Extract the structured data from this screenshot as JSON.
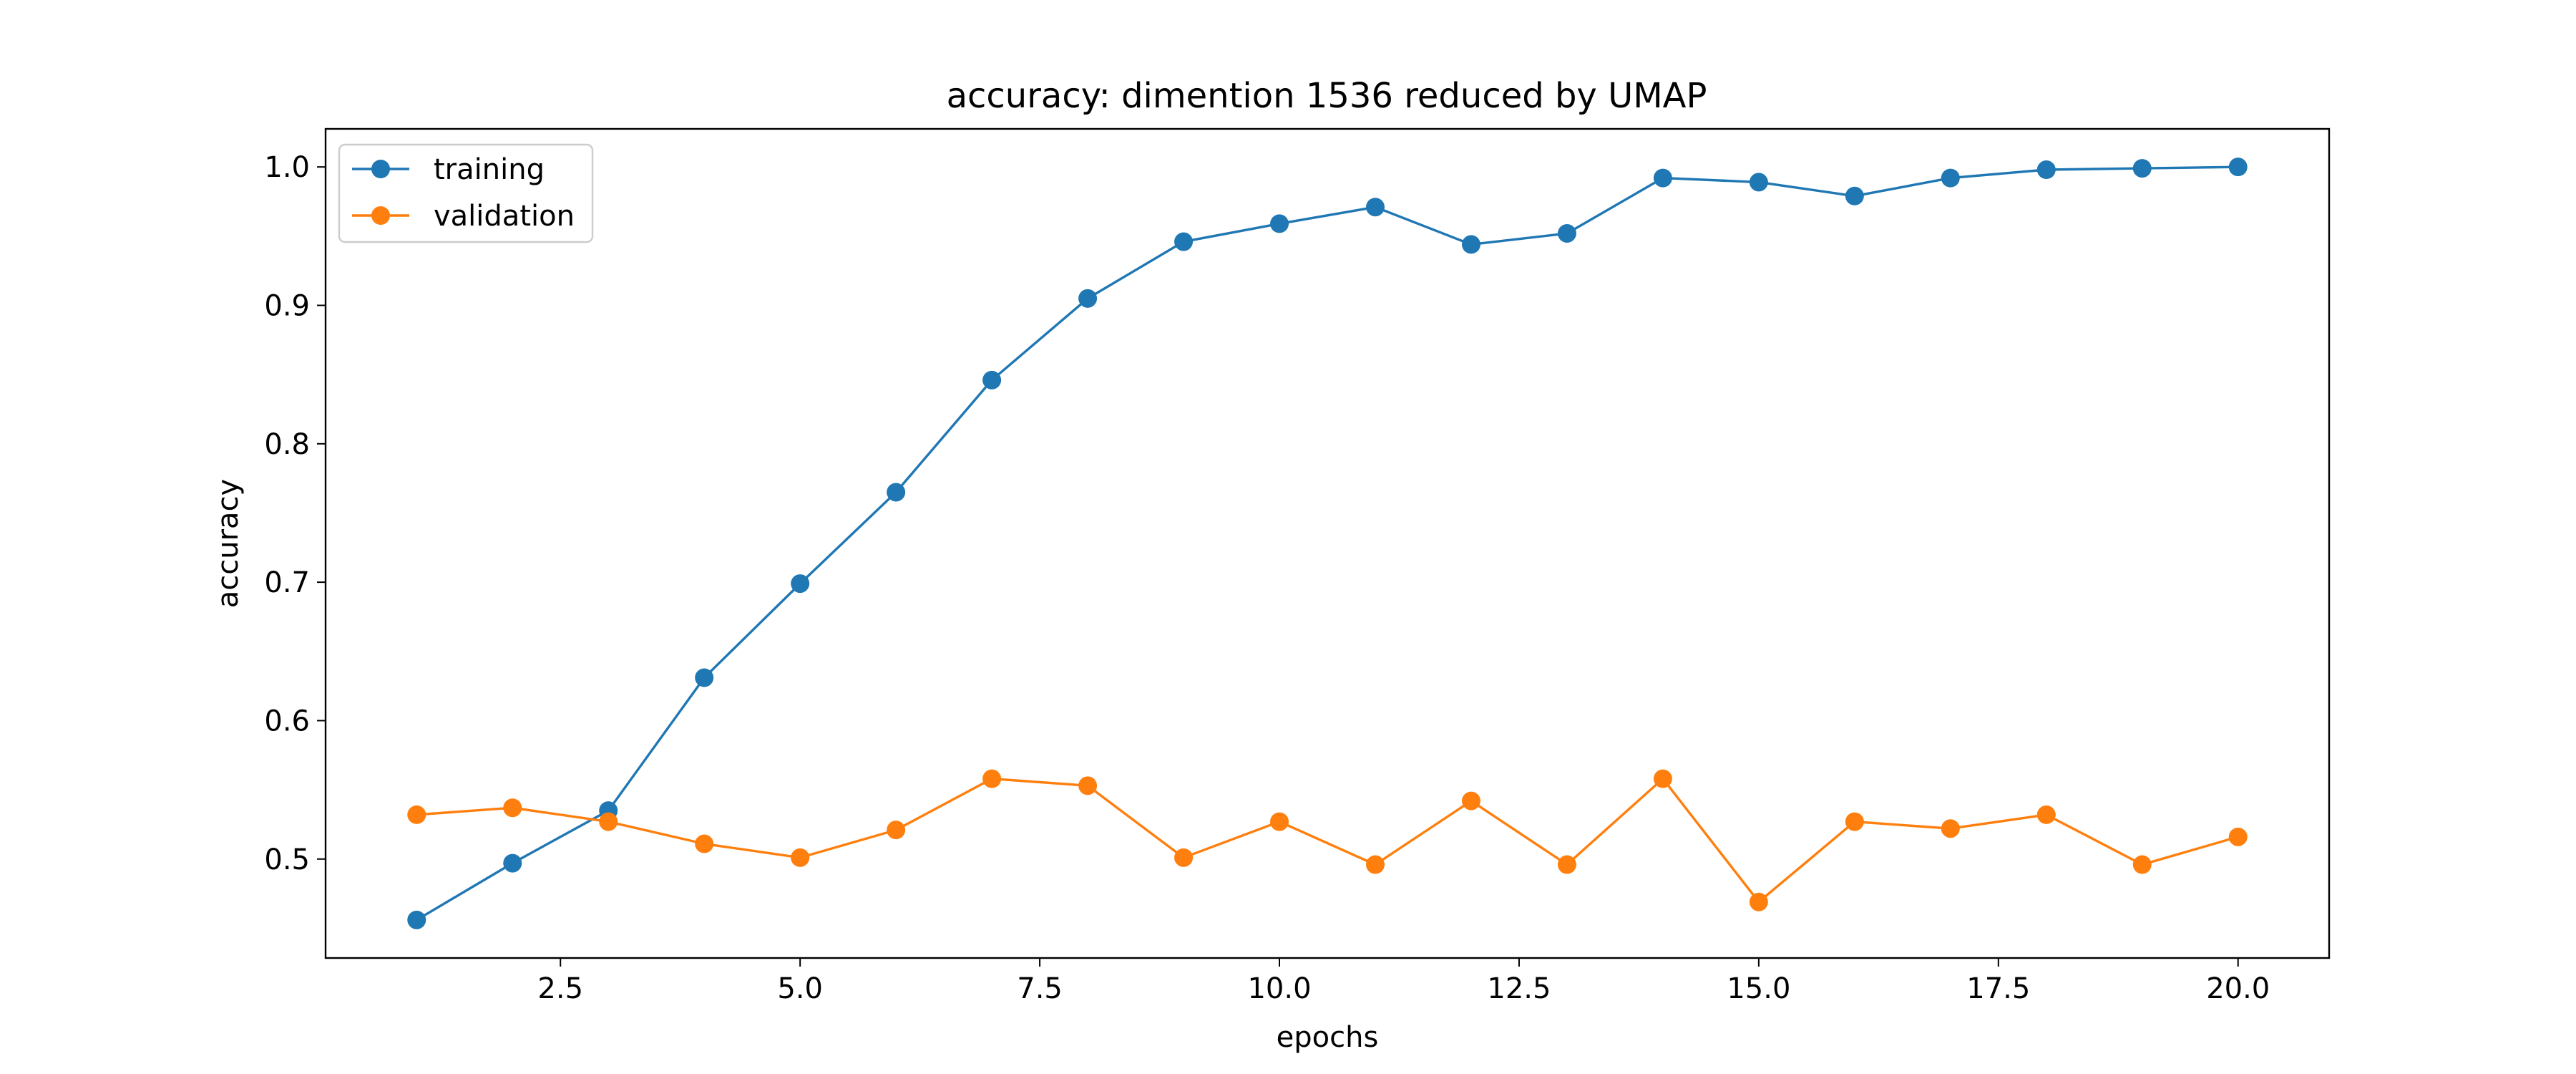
{
  "chart_data": {
    "type": "line",
    "title": "accuracy: dimention 1536 reduced by UMAP",
    "xlabel": "epochs",
    "ylabel": "accuracy",
    "xlim": [
      0.05,
      20.95
    ],
    "ylim": [
      0.4285,
      1.0275
    ],
    "xticks": [
      2.5,
      5.0,
      7.5,
      10.0,
      12.5,
      15.0,
      17.5,
      20.0
    ],
    "xtick_labels": [
      "2.5",
      "5.0",
      "7.5",
      "10.0",
      "12.5",
      "15.0",
      "17.5",
      "20.0"
    ],
    "yticks": [
      0.5,
      0.6,
      0.7,
      0.8,
      0.9,
      1.0
    ],
    "ytick_labels": [
      "0.5",
      "0.6",
      "0.7",
      "0.8",
      "0.9",
      "1.0"
    ],
    "grid": false,
    "legend_position": "top-left",
    "x": [
      1,
      2,
      3,
      4,
      5,
      6,
      7,
      8,
      9,
      10,
      11,
      12,
      13,
      14,
      15,
      16,
      17,
      18,
      19,
      20
    ],
    "series": [
      {
        "name": "training",
        "color": "#1f77b4",
        "marker": "circle",
        "values": [
          0.456,
          0.497,
          0.535,
          0.631,
          0.699,
          0.765,
          0.846,
          0.905,
          0.946,
          0.959,
          0.971,
          0.944,
          0.952,
          0.992,
          0.989,
          0.979,
          0.992,
          0.998,
          0.999,
          1.0
        ]
      },
      {
        "name": "validation",
        "color": "#ff7f0e",
        "marker": "circle",
        "values": [
          0.532,
          0.537,
          0.527,
          0.511,
          0.501,
          0.521,
          0.558,
          0.553,
          0.501,
          0.527,
          0.496,
          0.542,
          0.496,
          0.558,
          0.469,
          0.527,
          0.522,
          0.532,
          0.496,
          0.516
        ]
      }
    ]
  }
}
